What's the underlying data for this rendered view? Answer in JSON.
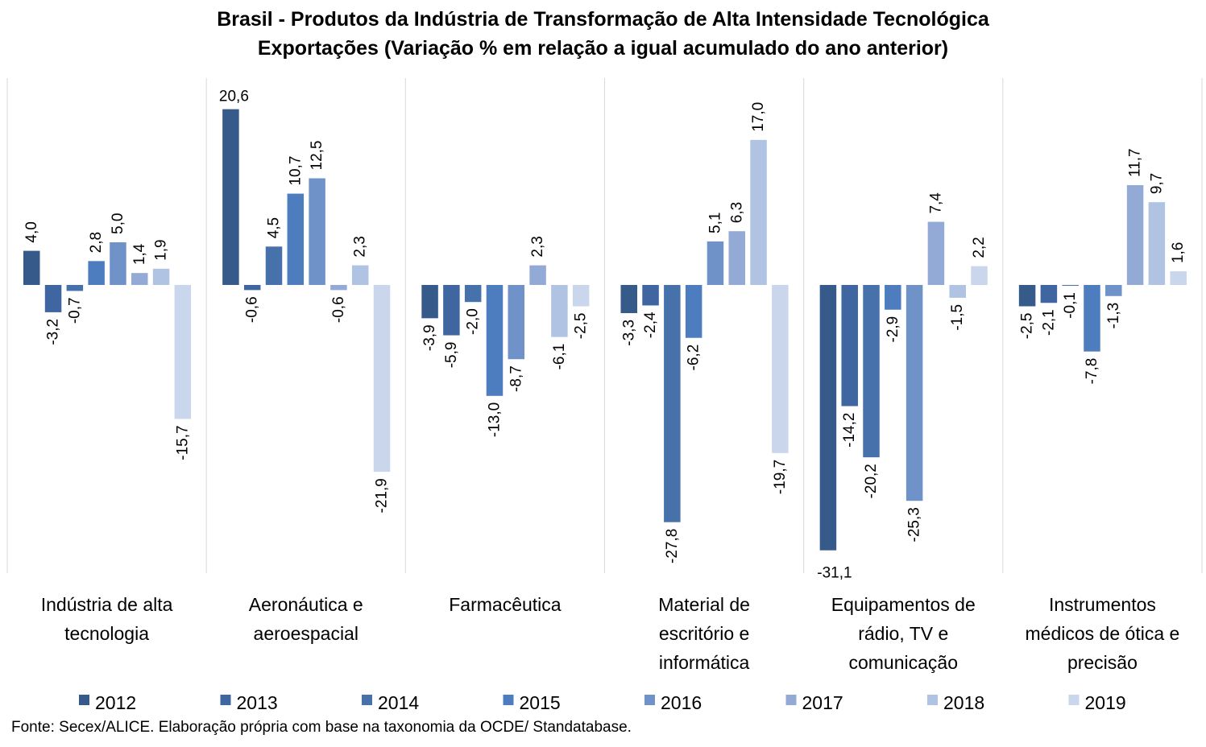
{
  "chart_data": {
    "type": "bar",
    "title": "Brasil - Produtos da Indústria de Transformação de Alta Intensidade Tecnológica",
    "subtitle": "Exportações (Variação % em relação a igual acumulado do ano anterior)",
    "categories": [
      [
        "Indústria de alta",
        "tecnologia"
      ],
      [
        "Aeronáutica e",
        "aeroespacial"
      ],
      [
        "Farmacêutica"
      ],
      [
        "Material de",
        "escritório e",
        "informática"
      ],
      [
        "Equipamentos de",
        "rádio, TV e",
        "comunicação"
      ],
      [
        "Instrumentos",
        "médicos de ótica e",
        "precisão"
      ]
    ],
    "series": [
      {
        "name": "2012",
        "color": "#365a8a",
        "values": [
          4.0,
          20.6,
          -3.9,
          -3.3,
          -31.1,
          -2.5
        ],
        "labels": [
          "4,0",
          "20,6",
          "-3,9",
          "-3,3",
          "-31,1",
          "-2,5"
        ]
      },
      {
        "name": "2013",
        "color": "#3f66a0",
        "values": [
          -3.2,
          -0.6,
          -5.9,
          -2.4,
          -14.2,
          -2.1
        ],
        "labels": [
          "-3,2",
          "-0,6",
          "-5,9",
          "-2,4",
          "-14,2",
          "-2,1"
        ]
      },
      {
        "name": "2014",
        "color": "#4671aa",
        "values": [
          -0.7,
          4.5,
          -2.0,
          -27.8,
          -20.2,
          -0.1
        ],
        "labels": [
          "-0,7",
          "4,5",
          "-2,0",
          "-27,8",
          "-20,2",
          "-0,1"
        ]
      },
      {
        "name": "2015",
        "color": "#4e7dbf",
        "values": [
          2.8,
          10.7,
          -13.0,
          -6.2,
          -2.9,
          -7.8
        ],
        "labels": [
          "2,8",
          "10,7",
          "-13,0",
          "-6,2",
          "-2,9",
          "-7,8"
        ]
      },
      {
        "name": "2016",
        "color": "#6f93c9",
        "values": [
          5.0,
          12.5,
          -8.7,
          5.1,
          -25.3,
          -1.3
        ],
        "labels": [
          "5,0",
          "12,5",
          "-8,7",
          "5,1",
          "-25,3",
          "-1,3"
        ]
      },
      {
        "name": "2017",
        "color": "#93aad6",
        "values": [
          1.4,
          -0.6,
          2.3,
          6.3,
          7.4,
          11.7
        ],
        "labels": [
          "1,4",
          "-0,6",
          "2,3",
          "6,3",
          "7,4",
          "11,7"
        ]
      },
      {
        "name": "2018",
        "color": "#b1c3e2",
        "values": [
          1.9,
          2.3,
          -6.1,
          17.0,
          -1.5,
          9.7
        ],
        "labels": [
          "1,9",
          "2,3",
          "-6,1",
          "17,0",
          "-1,5",
          "9,7"
        ]
      },
      {
        "name": "2019",
        "color": "#cad6eb",
        "values": [
          -15.7,
          -21.9,
          -2.5,
          -19.7,
          2.2,
          1.6
        ],
        "labels": [
          "-15,7",
          "-21,9",
          "-2,5",
          "-19,7",
          "2,2",
          "1,6"
        ]
      }
    ],
    "ylim": [
      -33.5,
      24.4
    ],
    "grid": false,
    "legend": "bottom",
    "source": "Fonte: Secex/ALICE. Elaboração própria com base na taxonomia da OCDE/ Standatabase."
  }
}
